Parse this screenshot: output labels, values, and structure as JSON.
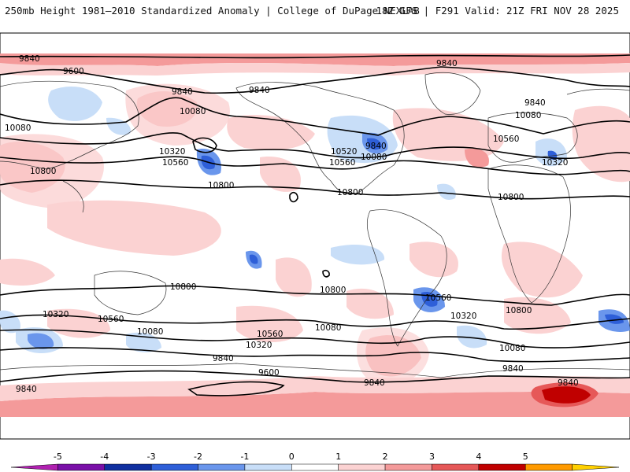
{
  "header": {
    "left": "250mb Height 1981–2010 Standardized Anomaly | College of DuPage NEXLAB",
    "right": "18Z GFS | F291 Valid: 21Z FRI NOV 28 2025"
  },
  "map": {
    "projection": "global equirectangular",
    "variable": "250mb geopotential height (m) with standardized anomaly shading",
    "contour_labels": [
      {
        "text": "9840"
      },
      {
        "text": "9600"
      },
      {
        "text": "9840"
      },
      {
        "text": "10080"
      },
      {
        "text": "9840"
      },
      {
        "text": "10080"
      },
      {
        "text": "10320"
      },
      {
        "text": "10560"
      },
      {
        "text": "10800"
      },
      {
        "text": "10800"
      },
      {
        "text": "10520"
      },
      {
        "text": "10560"
      },
      {
        "text": "9840"
      },
      {
        "text": "10080"
      },
      {
        "text": "10800"
      },
      {
        "text": "9840"
      },
      {
        "text": "9840"
      },
      {
        "text": "10080"
      },
      {
        "text": "10560"
      },
      {
        "text": "10320"
      },
      {
        "text": "10800"
      },
      {
        "text": "10800"
      },
      {
        "text": "10800"
      },
      {
        "text": "10560"
      },
      {
        "text": "10800"
      },
      {
        "text": "10320"
      },
      {
        "text": "10560"
      },
      {
        "text": "10080"
      },
      {
        "text": "10560"
      },
      {
        "text": "10080"
      },
      {
        "text": "10320"
      },
      {
        "text": "10320"
      },
      {
        "text": "10080"
      },
      {
        "text": "9840"
      },
      {
        "text": "9840"
      },
      {
        "text": "9600"
      },
      {
        "text": "9840"
      },
      {
        "text": "9840"
      },
      {
        "text": "9840"
      }
    ]
  },
  "colorbar": {
    "ticks": [
      "-5",
      "-4",
      "-3",
      "-2",
      "-1",
      "0",
      "1",
      "2",
      "3",
      "4",
      "5"
    ],
    "colors": [
      "#b020b0",
      "#7a10a8",
      "#1030a0",
      "#2e5fd8",
      "#6a96ec",
      "#c8def8",
      "#ffffff",
      "#fbd2d2",
      "#f49a9a",
      "#e65858",
      "#c00000",
      "#ff9a00",
      "#ffd000"
    ]
  }
}
